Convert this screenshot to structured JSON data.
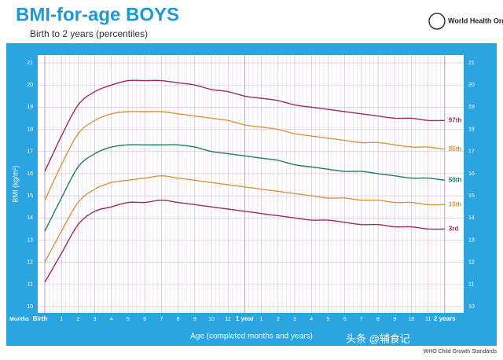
{
  "chart_data": {
    "type": "line",
    "title": "BMI-for-age BOYS",
    "subtitle": "Birth to 2 years (percentiles)",
    "organization": "World Health Organization",
    "y_label": "BMI (kg/m²)",
    "x_label": "Age (completed months and years)",
    "x_unit_label": "Months",
    "footer": "WHO Child Growth Standards",
    "watermark": "头条 @辅食记",
    "categories": [
      "Birth",
      "1",
      "2",
      "3",
      "4",
      "5",
      "6",
      "7",
      "8",
      "9",
      "10",
      "11",
      "1 year",
      "1",
      "2",
      "3",
      "4",
      "5",
      "6",
      "7",
      "8",
      "9",
      "10",
      "11",
      "2 years"
    ],
    "ylim": [
      10,
      21
    ],
    "yticks": [
      10,
      11,
      12,
      13,
      14,
      15,
      16,
      17,
      18,
      19,
      20,
      21
    ],
    "grid": true,
    "series": [
      {
        "name": "97th",
        "color": "#9b2a63",
        "values": [
          16.1,
          17.7,
          19.1,
          19.7,
          20.0,
          20.2,
          20.2,
          20.2,
          20.1,
          20.0,
          19.8,
          19.7,
          19.5,
          19.4,
          19.3,
          19.1,
          19.0,
          18.9,
          18.8,
          18.7,
          18.6,
          18.5,
          18.5,
          18.4,
          18.4
        ]
      },
      {
        "name": "85th",
        "color": "#d9953e",
        "values": [
          14.8,
          16.4,
          17.8,
          18.4,
          18.7,
          18.8,
          18.8,
          18.8,
          18.7,
          18.6,
          18.5,
          18.4,
          18.2,
          18.1,
          18.0,
          17.8,
          17.7,
          17.6,
          17.5,
          17.4,
          17.4,
          17.3,
          17.2,
          17.2,
          17.1
        ]
      },
      {
        "name": "50th",
        "color": "#1f7d5c",
        "values": [
          13.4,
          14.9,
          16.3,
          16.9,
          17.2,
          17.3,
          17.3,
          17.3,
          17.3,
          17.2,
          17.0,
          16.9,
          16.8,
          16.7,
          16.6,
          16.4,
          16.3,
          16.2,
          16.1,
          16.1,
          16.0,
          15.9,
          15.8,
          15.8,
          15.7
        ]
      },
      {
        "name": "15th",
        "color": "#d9953e",
        "values": [
          12.0,
          13.4,
          14.7,
          15.3,
          15.6,
          15.7,
          15.8,
          15.9,
          15.8,
          15.7,
          15.6,
          15.5,
          15.4,
          15.3,
          15.2,
          15.1,
          15.0,
          14.9,
          14.9,
          14.8,
          14.8,
          14.7,
          14.7,
          14.6,
          14.6
        ]
      },
      {
        "name": "3rd",
        "color": "#9b2a63",
        "values": [
          11.1,
          12.4,
          13.7,
          14.3,
          14.5,
          14.7,
          14.7,
          14.8,
          14.7,
          14.6,
          14.5,
          14.4,
          14.3,
          14.2,
          14.1,
          14.0,
          13.9,
          13.9,
          13.8,
          13.7,
          13.7,
          13.6,
          13.6,
          13.5,
          13.5
        ]
      }
    ]
  }
}
